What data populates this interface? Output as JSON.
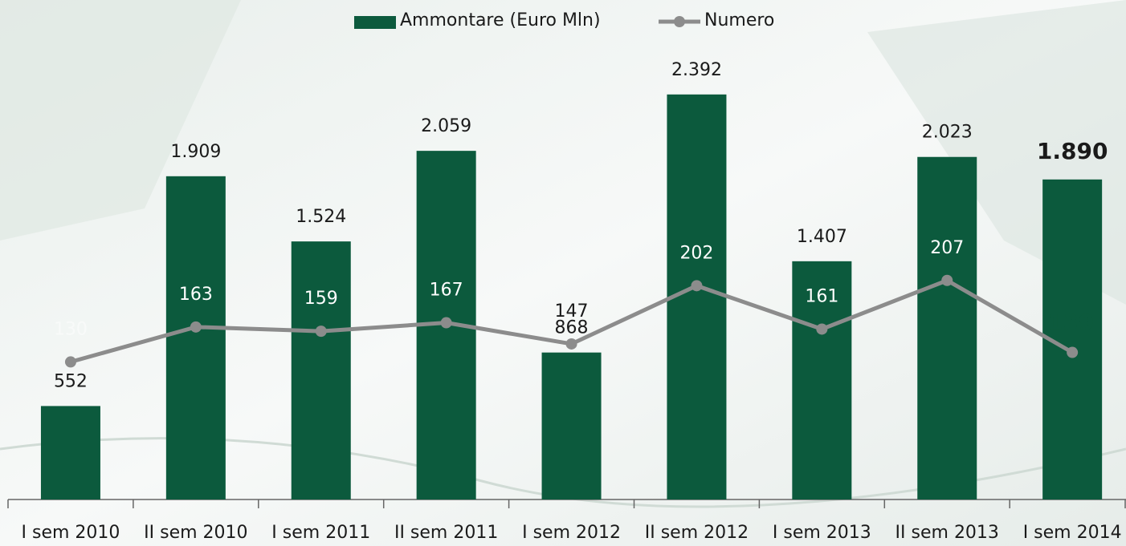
{
  "chart_data": {
    "type": "bar",
    "categories": [
      "I sem 2010",
      "II sem 2010",
      "I sem 2011",
      "II sem 2011",
      "I sem 2012",
      "II sem 2012",
      "I sem 2013",
      "II sem 2013",
      "I sem 2014"
    ],
    "series": [
      {
        "name": "Ammontare (Euro Mln)",
        "type": "bar",
        "color": "#0c5a3d",
        "values": [
          552,
          1909,
          1524,
          2059,
          868,
          2392,
          1407,
          2023,
          1890
        ],
        "value_labels": [
          "552",
          "1.909",
          "1.524",
          "2.059",
          "868",
          "2.392",
          "1.407",
          "2.023",
          "1.890"
        ]
      },
      {
        "name": "Numero",
        "type": "line",
        "color": "#8c8c8c",
        "axis": "y2",
        "values": [
          130,
          163,
          159,
          167,
          147,
          202,
          161,
          207,
          139
        ]
      }
    ],
    "ylim": [
      0,
      2500
    ],
    "y2lim": [
      0,
      400
    ],
    "legend": "top"
  }
}
